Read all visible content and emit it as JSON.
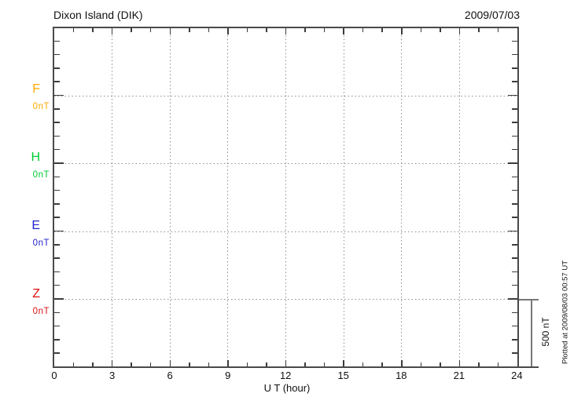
{
  "header": {
    "title": "Dixon Island (DIK)",
    "date": "2009/07/03"
  },
  "channels": [
    {
      "label": "F",
      "baseline_label": "0nT",
      "color": "#FFAA00"
    },
    {
      "label": "H",
      "baseline_label": "0nT",
      "color": "#00CC33"
    },
    {
      "label": "E",
      "baseline_label": "0nT",
      "color": "#2222CC"
    },
    {
      "label": "Z",
      "baseline_label": "0nT",
      "color": "#DD1111"
    }
  ],
  "x_axis": {
    "tick_labels": [
      "0",
      "3",
      "6",
      "9",
      "12",
      "15",
      "18",
      "21",
      "24"
    ],
    "label": "U T (hour)"
  },
  "scale_bar": {
    "label": "500 nT"
  },
  "footer_note": "Plotted at 2009/08/03 00:57 UT",
  "colors": {
    "frame": "#4a4a4a",
    "ticks": "#3c3c3c",
    "grid_dots": "#8f8f8f",
    "scale_bar": "#777777",
    "text": "#111111",
    "background": "#ffffff"
  },
  "chart_data": {
    "type": "line",
    "title": "Dixon Island (DIK)",
    "date": "2009/07/03",
    "xlabel": "U T (hour)",
    "xlim": [
      0,
      24
    ],
    "x_ticks": [
      0,
      3,
      6,
      9,
      12,
      15,
      18,
      21,
      24
    ],
    "x_minor_tick_hours": 1,
    "grid": "dotted vertical lines every 3 hours; dotted horizontal line at each channel 0 nT baseline",
    "y_scale": {
      "minor_tick_nT": 100,
      "baseline_spacing_nT": 500,
      "scale_bar_nT": 500
    },
    "series": [
      {
        "name": "F",
        "baseline_nT": 0,
        "values": []
      },
      {
        "name": "H",
        "baseline_nT": 0,
        "values": []
      },
      {
        "name": "E",
        "baseline_nT": 0,
        "values": []
      },
      {
        "name": "Z",
        "baseline_nT": 0,
        "values": []
      }
    ],
    "note": "Empty magnetogram for 2009/07/03 - only 0 nT baselines shown, no data traces plotted"
  }
}
